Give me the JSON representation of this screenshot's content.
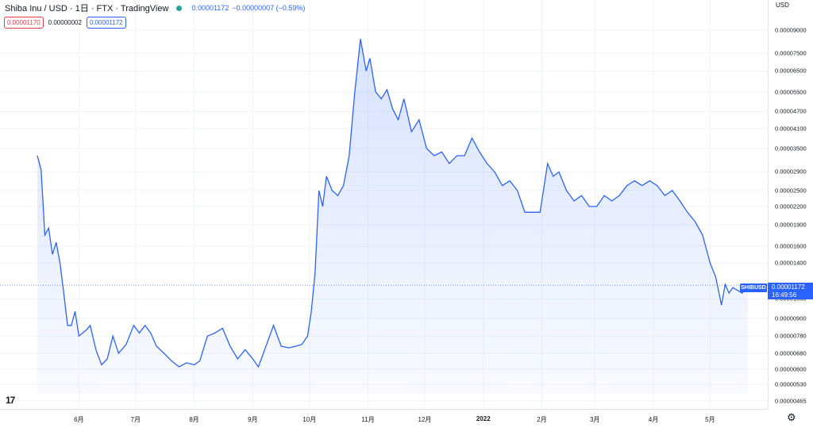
{
  "header": {
    "symbol": "Shiba Inu / USD · 1日 · FTX · TradingView",
    "last_price": "0.00001172",
    "change": "−0.00000007 (−0.59%)",
    "status_color": "#26a69a"
  },
  "ohlc": {
    "bid": "0.00001170",
    "spread": "0.00000002",
    "ask": "0.00001172"
  },
  "price_axis": {
    "unit": "USD",
    "ticks": [
      "0.00009000",
      "0.00007500",
      "0.00006500",
      "0.00005500",
      "0.00004700",
      "0.00004100",
      "0.00003500",
      "0.00002900",
      "0.00002500",
      "0.00002200",
      "0.00001900",
      "0.00001600",
      "0.00001400",
      "0.00001050",
      "0.00000900",
      "0.00000780",
      "0.00000680",
      "0.00000600",
      "0.00000530",
      "0.00000465"
    ]
  },
  "time_axis": {
    "ticks": [
      "6月",
      "7月",
      "8月",
      "9月",
      "10月",
      "11月",
      "12月",
      "2022",
      "2月",
      "3月",
      "4月",
      "5月"
    ],
    "bold_index": 7
  },
  "price_label": {
    "symbol": "SHIBUSD",
    "price": "0.00001172",
    "countdown": "16:49:56"
  },
  "logo": "17",
  "settings_icon": "gear-icon",
  "colors": {
    "line": "#2962ff",
    "accent": "#2962ff",
    "down": "#f23645"
  },
  "chart_data": {
    "type": "area",
    "scale": "log",
    "x": [
      "2021-05-10",
      "2021-05-12",
      "2021-05-14",
      "2021-05-16",
      "2021-05-18",
      "2021-05-20",
      "2021-05-22",
      "2021-05-24",
      "2021-05-26",
      "2021-05-28",
      "2021-05-30",
      "2021-06-01",
      "2021-06-03",
      "2021-06-05",
      "2021-06-07",
      "2021-06-10",
      "2021-06-13",
      "2021-06-16",
      "2021-06-19",
      "2021-06-22",
      "2021-06-26",
      "2021-06-30",
      "2021-07-03",
      "2021-07-06",
      "2021-07-09",
      "2021-07-12",
      "2021-07-16",
      "2021-07-20",
      "2021-07-24",
      "2021-07-28",
      "2021-08-01",
      "2021-08-04",
      "2021-08-08",
      "2021-08-12",
      "2021-08-16",
      "2021-08-20",
      "2021-08-24",
      "2021-08-28",
      "2021-09-01",
      "2021-09-04",
      "2021-09-08",
      "2021-09-12",
      "2021-09-16",
      "2021-09-20",
      "2021-09-24",
      "2021-09-27",
      "2021-09-30",
      "2021-10-02",
      "2021-10-04",
      "2021-10-06",
      "2021-10-08",
      "2021-10-10",
      "2021-10-13",
      "2021-10-16",
      "2021-10-19",
      "2021-10-22",
      "2021-10-25",
      "2021-10-28",
      "2021-10-31",
      "2021-11-02",
      "2021-11-05",
      "2021-11-08",
      "2021-11-11",
      "2021-11-14",
      "2021-11-17",
      "2021-11-20",
      "2021-11-24",
      "2021-11-28",
      "2021-12-02",
      "2021-12-06",
      "2021-12-10",
      "2021-12-14",
      "2021-12-18",
      "2021-12-22",
      "2021-12-26",
      "2021-12-30",
      "2022-01-03",
      "2022-01-07",
      "2022-01-11",
      "2022-01-15",
      "2022-01-19",
      "2022-01-23",
      "2022-01-27",
      "2022-01-31",
      "2022-02-04",
      "2022-02-07",
      "2022-02-10",
      "2022-02-14",
      "2022-02-18",
      "2022-02-22",
      "2022-02-26",
      "2022-03-02",
      "2022-03-06",
      "2022-03-10",
      "2022-03-14",
      "2022-03-18",
      "2022-03-22",
      "2022-03-26",
      "2022-03-30",
      "2022-04-03",
      "2022-04-07",
      "2022-04-11",
      "2022-04-15",
      "2022-04-19",
      "2022-04-23",
      "2022-04-27",
      "2022-05-01",
      "2022-05-04",
      "2022-05-07",
      "2022-05-09",
      "2022-05-11",
      "2022-05-13",
      "2022-05-15",
      "2022-05-18",
      "2022-05-21"
    ],
    "values": [
      3.3e-05,
      2.95e-05,
      1.75e-05,
      1.85e-05,
      1.5e-05,
      1.65e-05,
      1.4e-05,
      1.1e-05,
      8.5e-06,
      8.5e-06,
      9.5e-06,
      7.8e-06,
      8e-06,
      8.2e-06,
      8.5e-06,
      7e-06,
      6.2e-06,
      6.5e-06,
      7.8e-06,
      6.8e-06,
      7.3e-06,
      8.5e-06,
      8e-06,
      8.5e-06,
      8e-06,
      7.2e-06,
      6.8e-06,
      6.4e-06,
      6.1e-06,
      6.3e-06,
      6.2e-06,
      6.4e-06,
      7.8e-06,
      8e-06,
      8.3e-06,
      7.2e-06,
      6.5e-06,
      7e-06,
      6.5e-06,
      6.1e-06,
      7.2e-06,
      8.5e-06,
      7.2e-06,
      7.1e-06,
      7.2e-06,
      7.3e-06,
      7.8e-06,
      9.5e-06,
      1.3e-05,
      2.5e-05,
      2.2e-05,
      2.8e-05,
      2.5e-05,
      2.4e-05,
      2.6e-05,
      3.3e-05,
      5.5e-05,
      8.4e-05,
      6.5e-05,
      7.2e-05,
      5.5e-05,
      5.2e-05,
      5.6e-05,
      4.8e-05,
      4.4e-05,
      5.2e-05,
      4e-05,
      4.4e-05,
      3.5e-05,
      3.3e-05,
      3.4e-05,
      3.1e-05,
      3.3e-05,
      3.3e-05,
      3.8e-05,
      3.4e-05,
      3.1e-05,
      2.9e-05,
      2.6e-05,
      2.7e-05,
      2.5e-05,
      2.1e-05,
      2.1e-05,
      2.1e-05,
      3.1e-05,
      2.8e-05,
      2.9e-05,
      2.5e-05,
      2.3e-05,
      2.4e-05,
      2.2e-05,
      2.2e-05,
      2.4e-05,
      2.3e-05,
      2.4e-05,
      2.6e-05,
      2.7e-05,
      2.6e-05,
      2.7e-05,
      2.6e-05,
      2.4e-05,
      2.5e-05,
      2.3e-05,
      2.1e-05,
      1.95e-05,
      1.75e-05,
      1.4e-05,
      1.25e-05,
      1e-05,
      1.18e-05,
      1.1e-05,
      1.15e-05,
      1.13e-05,
      1.1e-05,
      1.172e-05
    ],
    "last": 1.172e-05,
    "grid": true,
    "legend": "top-left"
  }
}
